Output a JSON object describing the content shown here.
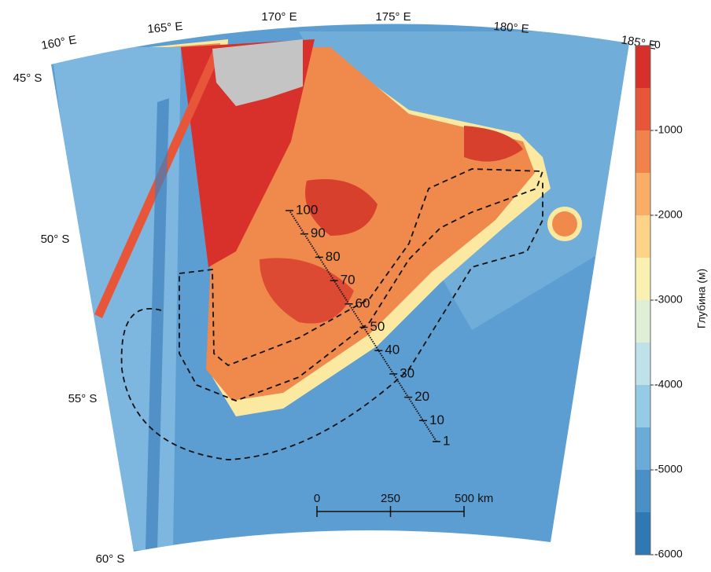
{
  "longitude_labels": [
    "160° E",
    "165° E",
    "170° E",
    "175° E",
    "180° E",
    "185° E"
  ],
  "latitude_labels": [
    "45° S",
    "50° S",
    "55° S",
    "60° S"
  ],
  "colorbar": {
    "label": "Глубина (м)",
    "range": [
      0,
      -6000
    ],
    "ticks": [
      0,
      -1000,
      -2000,
      -3000,
      -4000,
      -5000,
      -6000
    ],
    "colors": [
      "#d7302a",
      "#e8563a",
      "#f2824b",
      "#f9ad67",
      "#fdd487",
      "#f8f1b1",
      "#dfeed6",
      "#bfe2ea",
      "#95cbe4",
      "#6aacd7",
      "#4a8fc6",
      "#2f78b4"
    ]
  },
  "transect": {
    "range": [
      1,
      100
    ],
    "labels": [
      1,
      10,
      20,
      30,
      40,
      50,
      60,
      70,
      80,
      90,
      100
    ]
  },
  "scale_bar": {
    "range": [
      0,
      500
    ],
    "ticks": [
      0,
      250,
      {
        "value": 500,
        "label": "500 km"
      }
    ]
  }
}
